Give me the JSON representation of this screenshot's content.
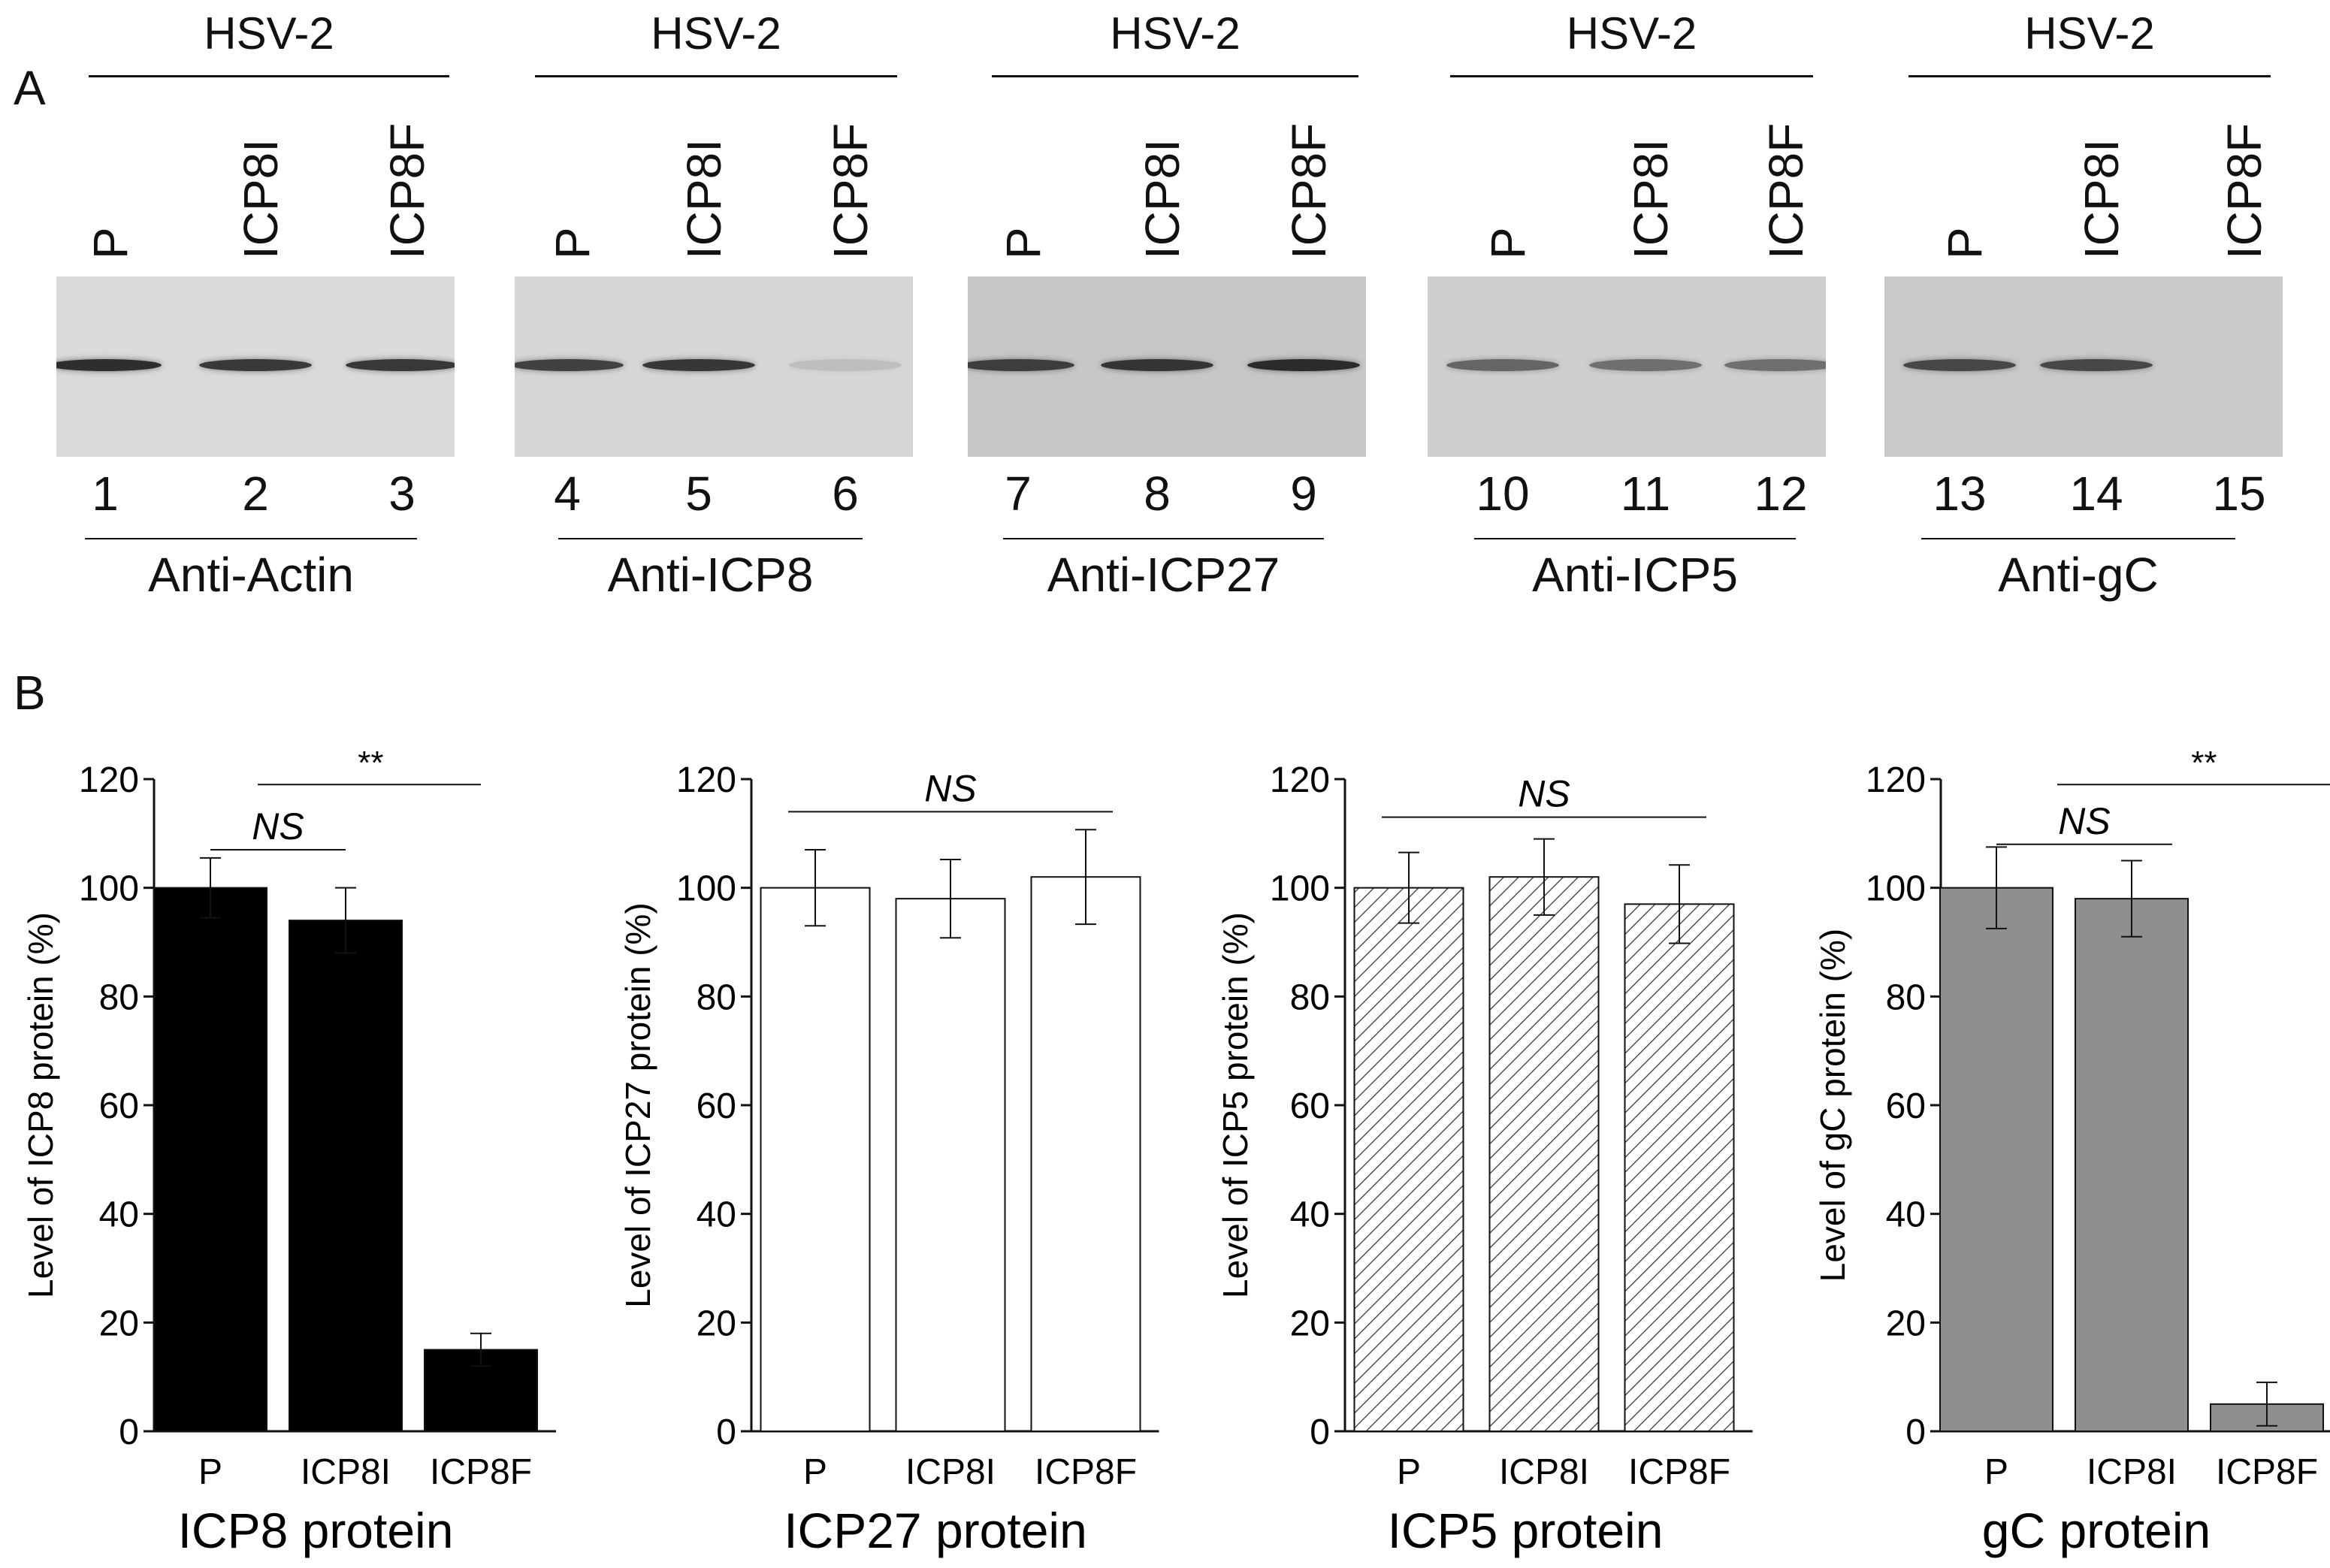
{
  "panelA": {
    "letter": "A",
    "blots": [
      {
        "virus": "HSV-2",
        "samples": [
          "P",
          "ICP8I",
          "ICP8F"
        ],
        "lanes": [
          "1",
          "2",
          "3"
        ],
        "antibody": "Anti-Actin"
      },
      {
        "virus": "HSV-2",
        "samples": [
          "P",
          "ICP8I",
          "ICP8F"
        ],
        "lanes": [
          "4",
          "5",
          "6"
        ],
        "antibody": "Anti-ICP8"
      },
      {
        "virus": "HSV-2",
        "samples": [
          "P",
          "ICP8I",
          "ICP8F"
        ],
        "lanes": [
          "7",
          "8",
          "9"
        ],
        "antibody": "Anti-ICP27"
      },
      {
        "virus": "HSV-2",
        "samples": [
          "P",
          "ICP8I",
          "ICP8F"
        ],
        "lanes": [
          "10",
          "11",
          "12"
        ],
        "antibody": "Anti-ICP5"
      },
      {
        "virus": "HSV-2",
        "samples": [
          "P",
          "ICP8I",
          "ICP8F"
        ],
        "lanes": [
          "13",
          "14",
          "15"
        ],
        "antibody": "Anti-gC"
      }
    ]
  },
  "panelB": {
    "letter": "B"
  },
  "chart_data": [
    {
      "type": "bar",
      "title": "ICP8 protein",
      "ylabel": "Level of ICP8 protein (%)",
      "categories": [
        "P",
        "ICP8I",
        "ICP8F"
      ],
      "values": [
        100,
        94,
        15
      ],
      "errors": [
        5.5,
        6,
        3
      ],
      "ylim": [
        0,
        120
      ],
      "yticks": [
        "0",
        "20",
        "40",
        "60",
        "80",
        "100",
        "120"
      ],
      "fill": "#000000",
      "annotations": [
        {
          "text": "NS",
          "from": 0,
          "to": 1,
          "y": 107
        },
        {
          "text": "**",
          "from": 0.35,
          "to": 2.0,
          "y": 119
        }
      ]
    },
    {
      "type": "bar",
      "title": "ICP27 protein",
      "ylabel": "Level of ICP27 protein (%)",
      "categories": [
        "P",
        "ICP8I",
        "ICP8F"
      ],
      "values": [
        100,
        98,
        102
      ],
      "errors": [
        7,
        7.2,
        8.7
      ],
      "ylim": [
        0,
        120
      ],
      "yticks": [
        "0",
        "20",
        "40",
        "60",
        "80",
        "100",
        "120"
      ],
      "fill": "#ffffff",
      "annotations": [
        {
          "text": "NS",
          "from": -0.2,
          "to": 2.2,
          "y": 114
        }
      ]
    },
    {
      "type": "bar",
      "title": "ICP5 protein",
      "ylabel": "Level of ICP5 protein (%)",
      "categories": [
        "P",
        "ICP8I",
        "ICP8F"
      ],
      "values": [
        100,
        102,
        97
      ],
      "errors": [
        6.5,
        7,
        7.2
      ],
      "ylim": [
        0,
        120
      ],
      "yticks": [
        "0",
        "20",
        "40",
        "60",
        "80",
        "100",
        "120"
      ],
      "fill": "hatch",
      "annotations": [
        {
          "text": "NS",
          "from": -0.2,
          "to": 2.2,
          "y": 113
        }
      ]
    },
    {
      "type": "bar",
      "title": "gC protein",
      "ylabel": "Level of gC protein (%)",
      "categories": [
        "P",
        "ICP8I",
        "ICP8F"
      ],
      "values": [
        100,
        98,
        5
      ],
      "errors": [
        7.5,
        7,
        4
      ],
      "ylim": [
        0,
        120
      ],
      "yticks": [
        "0",
        "20",
        "40",
        "60",
        "80",
        "100",
        "120"
      ],
      "fill": "#8f8f8f",
      "annotations": [
        {
          "text": "NS",
          "from": 0,
          "to": 1.3,
          "y": 108
        },
        {
          "text": "**",
          "from": 0.45,
          "to": 2.6,
          "y": 119
        }
      ]
    }
  ]
}
